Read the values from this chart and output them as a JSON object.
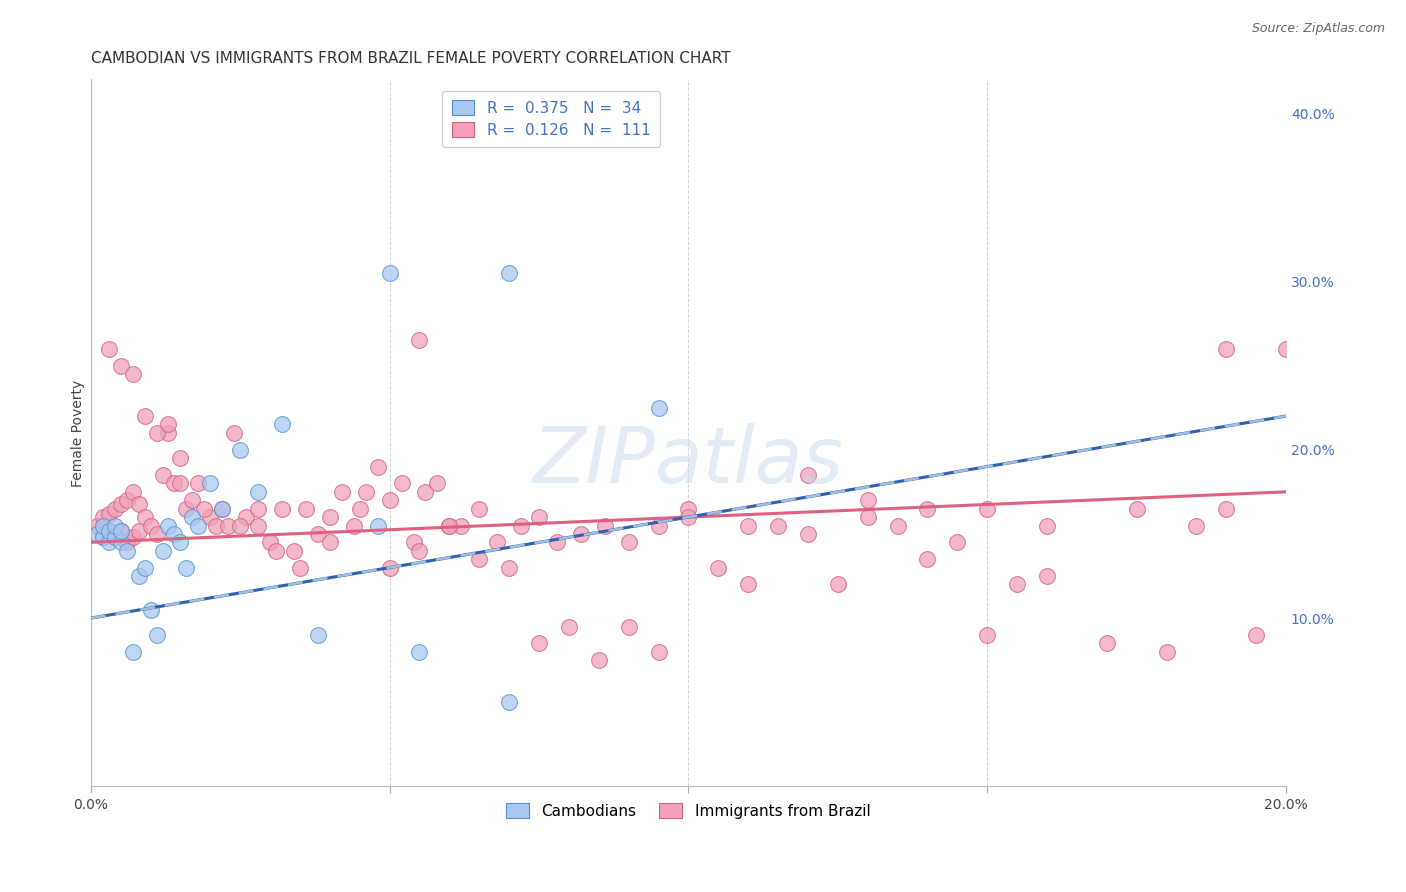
{
  "title": "CAMBODIAN VS IMMIGRANTS FROM BRAZIL FEMALE POVERTY CORRELATION CHART",
  "source": "Source: ZipAtlas.com",
  "ylabel": "Female Poverty",
  "xlim": [
    0.0,
    0.2
  ],
  "ylim": [
    0.0,
    0.42
  ],
  "yticks": [
    0.1,
    0.2,
    0.3,
    0.4
  ],
  "ytick_labels": [
    "10.0%",
    "20.0%",
    "30.0%",
    "40.0%"
  ],
  "xticks": [
    0.0,
    0.05,
    0.1,
    0.15,
    0.2
  ],
  "xtick_labels": [
    "0.0%",
    "",
    "",
    "",
    "20.0%"
  ],
  "right_axis_color": "#4472C4",
  "cambodian_face_color": "#a8c8f0",
  "cambodian_edge_color": "#5090d0",
  "brazil_face_color": "#f0a0b8",
  "brazil_edge_color": "#d06080",
  "cambodian_solid_line_color": "#3060b0",
  "cambodian_dashed_line_color": "#a0c0e0",
  "brazil_line_color": "#e06080",
  "legend_R1": "0.375",
  "legend_N1": "34",
  "legend_R2": "0.126",
  "legend_N2": "111",
  "legend_value_color": "#4472C4",
  "background_color": "#ffffff",
  "grid_color": "#cccccc",
  "watermark_text": "ZIPatlas",
  "watermark_color": "#c8d8f0",
  "title_fontsize": 11,
  "label_fontsize": 10,
  "tick_fontsize": 10,
  "legend_fontsize": 11,
  "cambodian_x": [
    0.001,
    0.002,
    0.002,
    0.003,
    0.003,
    0.004,
    0.004,
    0.005,
    0.005,
    0.006,
    0.007,
    0.008,
    0.009,
    0.01,
    0.011,
    0.012,
    0.013,
    0.014,
    0.015,
    0.016,
    0.017,
    0.018,
    0.02,
    0.022,
    0.025,
    0.028,
    0.032,
    0.038,
    0.048,
    0.05,
    0.055,
    0.07,
    0.07,
    0.095
  ],
  "cambodian_y": [
    0.15,
    0.148,
    0.155,
    0.145,
    0.152,
    0.148,
    0.155,
    0.145,
    0.152,
    0.14,
    0.08,
    0.125,
    0.13,
    0.105,
    0.09,
    0.14,
    0.155,
    0.15,
    0.145,
    0.13,
    0.16,
    0.155,
    0.18,
    0.165,
    0.2,
    0.175,
    0.215,
    0.09,
    0.155,
    0.305,
    0.08,
    0.05,
    0.305,
    0.225
  ],
  "brazil_x": [
    0.001,
    0.002,
    0.002,
    0.003,
    0.003,
    0.004,
    0.004,
    0.005,
    0.005,
    0.006,
    0.006,
    0.007,
    0.007,
    0.008,
    0.008,
    0.009,
    0.01,
    0.011,
    0.012,
    0.013,
    0.014,
    0.015,
    0.016,
    0.018,
    0.02,
    0.022,
    0.024,
    0.026,
    0.028,
    0.03,
    0.032,
    0.034,
    0.036,
    0.038,
    0.04,
    0.042,
    0.044,
    0.046,
    0.048,
    0.05,
    0.052,
    0.054,
    0.056,
    0.058,
    0.06,
    0.062,
    0.065,
    0.068,
    0.072,
    0.075,
    0.078,
    0.082,
    0.086,
    0.09,
    0.095,
    0.1,
    0.105,
    0.11,
    0.115,
    0.12,
    0.125,
    0.13,
    0.135,
    0.14,
    0.145,
    0.15,
    0.155,
    0.16,
    0.17,
    0.18,
    0.19,
    0.2,
    0.003,
    0.005,
    0.007,
    0.009,
    0.011,
    0.013,
    0.015,
    0.017,
    0.019,
    0.021,
    0.023,
    0.025,
    0.028,
    0.031,
    0.035,
    0.04,
    0.045,
    0.05,
    0.055,
    0.06,
    0.065,
    0.07,
    0.075,
    0.08,
    0.085,
    0.09,
    0.095,
    0.1,
    0.11,
    0.12,
    0.13,
    0.14,
    0.15,
    0.16,
    0.175,
    0.185,
    0.19,
    0.195,
    0.055
  ],
  "brazil_y": [
    0.155,
    0.16,
    0.148,
    0.162,
    0.152,
    0.165,
    0.148,
    0.168,
    0.152,
    0.17,
    0.145,
    0.175,
    0.148,
    0.168,
    0.152,
    0.16,
    0.155,
    0.15,
    0.185,
    0.21,
    0.18,
    0.195,
    0.165,
    0.18,
    0.16,
    0.165,
    0.21,
    0.16,
    0.165,
    0.145,
    0.165,
    0.14,
    0.165,
    0.15,
    0.16,
    0.175,
    0.155,
    0.175,
    0.19,
    0.17,
    0.18,
    0.145,
    0.175,
    0.18,
    0.155,
    0.155,
    0.135,
    0.145,
    0.155,
    0.16,
    0.145,
    0.15,
    0.155,
    0.145,
    0.155,
    0.165,
    0.13,
    0.12,
    0.155,
    0.15,
    0.12,
    0.16,
    0.155,
    0.135,
    0.145,
    0.09,
    0.12,
    0.125,
    0.085,
    0.08,
    0.165,
    0.26,
    0.26,
    0.25,
    0.245,
    0.22,
    0.21,
    0.215,
    0.18,
    0.17,
    0.165,
    0.155,
    0.155,
    0.155,
    0.155,
    0.14,
    0.13,
    0.145,
    0.165,
    0.13,
    0.14,
    0.155,
    0.165,
    0.13,
    0.085,
    0.095,
    0.075,
    0.095,
    0.08,
    0.16,
    0.155,
    0.185,
    0.17,
    0.165,
    0.165,
    0.155,
    0.165,
    0.155,
    0.26,
    0.09,
    0.265
  ]
}
